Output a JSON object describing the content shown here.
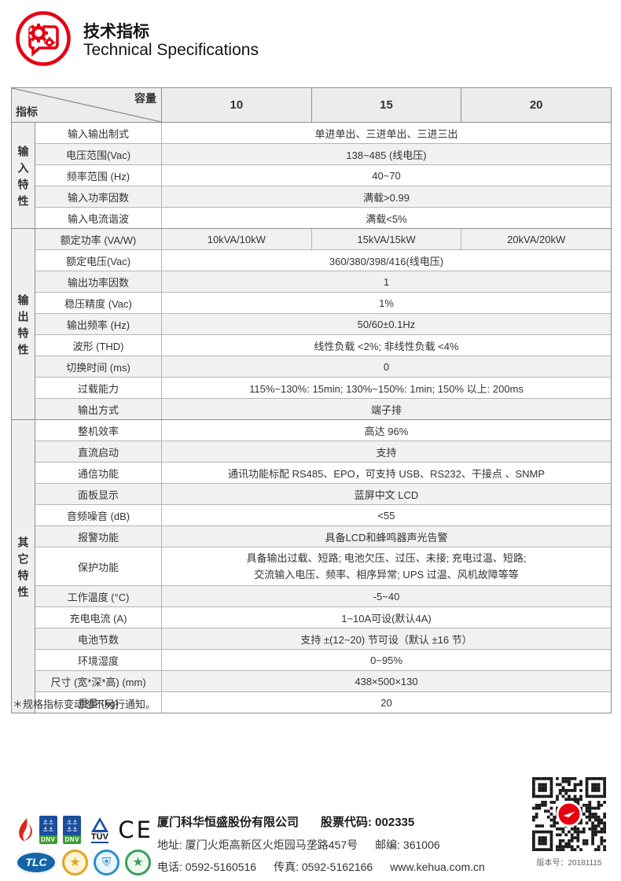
{
  "header": {
    "title_zh": "技术指标",
    "title_en": "Technical Specifications"
  },
  "accent_color": "#e60012",
  "table": {
    "corner_top": "容量",
    "corner_bottom": "指标",
    "columns": [
      "10",
      "15",
      "20"
    ],
    "groups": [
      {
        "label": "输入特性",
        "rows": [
          {
            "name": "输入输出制式",
            "value": "单进单出、三进单出、三进三出"
          },
          {
            "name": "电压范围(Vac)",
            "value": "138~485 (线电压)"
          },
          {
            "name": "频率范围 (Hz)",
            "value": "40~70"
          },
          {
            "name": "输入功率因数",
            "value": "满载>0.99"
          },
          {
            "name": "输入电流谐波",
            "value": "满载<5%"
          }
        ]
      },
      {
        "label": "输出特性",
        "rows": [
          {
            "name": "额定功率 (VA/W)",
            "values": [
              "10kVA/10kW",
              "15kVA/15kW",
              "20kVA/20kW"
            ]
          },
          {
            "name": "额定电压(Vac)",
            "value": "360/380/398/416(线电压)"
          },
          {
            "name": "输出功率因数",
            "value": "1"
          },
          {
            "name": "稳压精度 (Vac)",
            "value": "1%"
          },
          {
            "name": "输出频率 (Hz)",
            "value": "50/60±0.1Hz"
          },
          {
            "name": "波形 (THD)",
            "value": "线性负载 <2%; 非线性负载 <4%"
          },
          {
            "name": "切换时间 (ms)",
            "value": "0"
          },
          {
            "name": "过载能力",
            "value": "115%~130%: 15min; 130%~150%: 1min; 150% 以上: 200ms"
          },
          {
            "name": "输出方式",
            "value": "端子排"
          }
        ]
      },
      {
        "label": "其它特性",
        "rows": [
          {
            "name": "整机效率",
            "value": "高达 96%"
          },
          {
            "name": "直流启动",
            "value": "支持"
          },
          {
            "name": "通信功能",
            "value": "通讯功能标配 RS485、EPO，可支持 USB、RS232、干接点 、SNMP"
          },
          {
            "name": "面板显示",
            "value": "蓝屏中文 LCD"
          },
          {
            "name": "音频噪音 (dB)",
            "value": "<55"
          },
          {
            "name": "报警功能",
            "value": "具备LCD和蜂鸣器声光告警"
          },
          {
            "name": "保护功能",
            "value_lines": [
              "具备输出过载、短路; 电池欠压、过压、未接; 充电过温、短路;",
              "交流输入电压、频率、相序异常; UPS 过温、风机故障等等"
            ]
          },
          {
            "name": "工作温度 (°C)",
            "value": "-5~40"
          },
          {
            "name": "充电电流 (A)",
            "value": "1~10A可设(默认4A)"
          },
          {
            "name": "电池节数",
            "value": "支持 ±(12~20) 节可设（默认 ±16 节）"
          },
          {
            "name": "环境湿度",
            "value": "0~95%"
          },
          {
            "name": "尺寸 (宽*深*高) (mm)",
            "value": "438×500×130"
          },
          {
            "name": "重量 (kg)",
            "value": "20"
          }
        ]
      }
    ]
  },
  "footnote": "＊规格指标变动恕不另行通知。",
  "footer": {
    "company": "厦门科华恒盛股份有限公司",
    "stock": "股票代码: 002335",
    "address": "地址: 厦门火炬高新区火炬园马垄路457号",
    "postal": "邮编: 361006",
    "phone": "电话: 0592-5160516",
    "fax": "传真: 0592-5162166",
    "website": "www.kehua.com.cn",
    "logos": {
      "dnv": "DNV",
      "tuv": "TÜV",
      "ce": "CE",
      "tlc": "TLC",
      "gold_star": "★",
      "blue_shield": "⛨",
      "green_star": "★",
      "anchors": "⚓⚓"
    }
  },
  "qr_caption": "版本号：20181115"
}
